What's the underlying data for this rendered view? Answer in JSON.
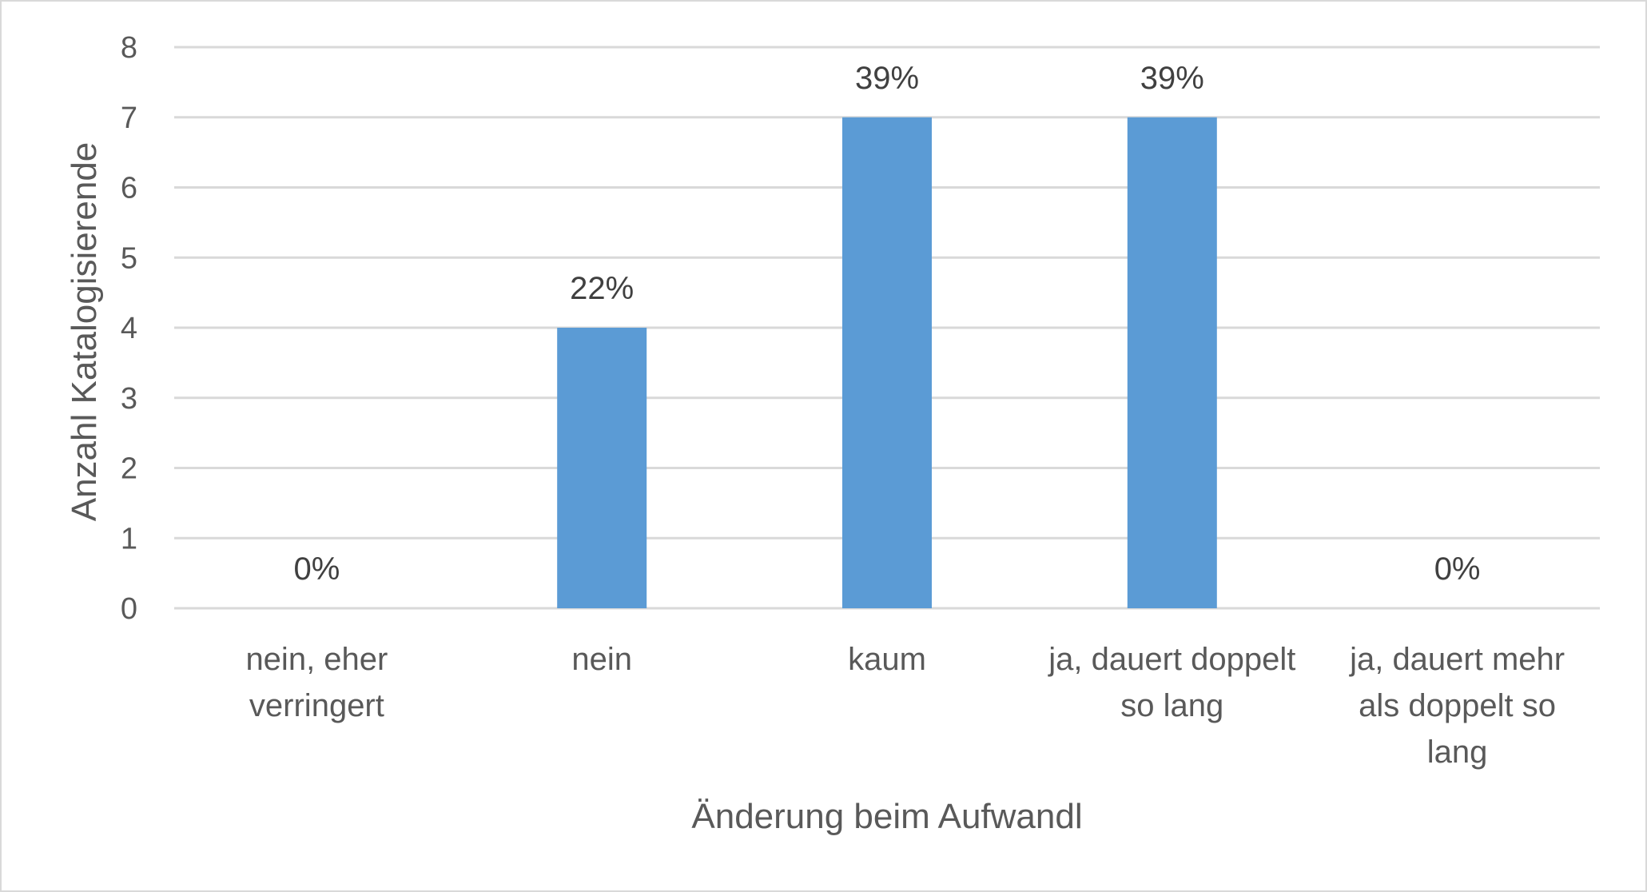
{
  "chart_data": {
    "type": "bar",
    "categories": [
      [
        "nein, eher",
        "verringert"
      ],
      [
        "nein"
      ],
      [
        "kaum"
      ],
      [
        "ja, dauert doppelt",
        "so lang"
      ],
      [
        "ja, dauert mehr",
        "als doppelt so",
        "lang"
      ]
    ],
    "values": [
      0,
      4,
      7,
      7,
      0
    ],
    "data_labels": [
      "0%",
      "22%",
      "39%",
      "39%",
      "0%"
    ],
    "title": "",
    "xlabel": "Änderung beim Aufwandl",
    "ylabel": "Anzahl Katalogisierende",
    "ylim": [
      0,
      8
    ],
    "yticks": [
      0,
      1,
      2,
      3,
      4,
      5,
      6,
      7,
      8
    ],
    "grid": true,
    "legend": "none",
    "bar_color": "#5b9bd5",
    "grid_color": "#d9d9d9"
  }
}
